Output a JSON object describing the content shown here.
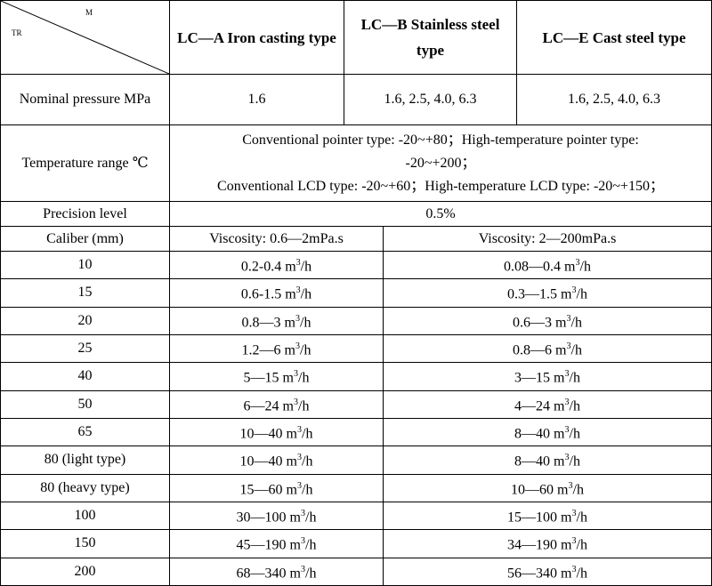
{
  "header": {
    "diag_top": "M",
    "diag_bottom": "TR",
    "col1": "LC—A Iron casting type",
    "col2": "LC—B Stainless steel type",
    "col3": "LC—E Cast steel type"
  },
  "nominal_pressure": {
    "label": "Nominal pressure MPa",
    "lc_a": "1.6",
    "lc_b": "1.6, 2.5, 4.0, 6.3",
    "lc_e": "1.6, 2.5, 4.0, 6.3"
  },
  "temperature": {
    "label": "Temperature range ℃",
    "line1": "Conventional pointer type: -20~+80；High-temperature pointer type:",
    "line2": "-20~+200；",
    "line3": "Conventional LCD type: -20~+60；High-temperature LCD type: -20~+150；"
  },
  "precision": {
    "label": "Precision level",
    "value": "0.5%"
  },
  "caliber": {
    "label": "Caliber (mm)",
    "viscosity_low": "Viscosity: 0.6—2mPa.s",
    "viscosity_high": "Viscosity: 2—200mPa.s",
    "unit_prefix": " m",
    "unit_sup": "3",
    "unit_suffix": "/h",
    "rows": [
      {
        "caliber": "10",
        "low": "0.2-0.4",
        "high": "0.08—0.4"
      },
      {
        "caliber": "15",
        "low": "0.6-1.5",
        "high": "0.3—1.5"
      },
      {
        "caliber": "20",
        "low": "0.8—3",
        "high": "0.6—3"
      },
      {
        "caliber": "25",
        "low": "1.2—6",
        "high": "0.8—6"
      },
      {
        "caliber": "40",
        "low": "5—15",
        "high": "3—15"
      },
      {
        "caliber": "50",
        "low": "6—24",
        "high": "4—24"
      },
      {
        "caliber": "65",
        "low": "10—40",
        "high": "8—40"
      },
      {
        "caliber": "80 (light type)",
        "low": "10—40",
        "high": "8—40"
      },
      {
        "caliber": "80 (heavy type)",
        "low": "15—60",
        "high": "10—60"
      },
      {
        "caliber": "100",
        "low": "30—100",
        "high": "15—100"
      },
      {
        "caliber": "150",
        "low": "45—190",
        "high": "34—190"
      },
      {
        "caliber": "200",
        "low": "68—340",
        "high": "56—340"
      }
    ]
  }
}
